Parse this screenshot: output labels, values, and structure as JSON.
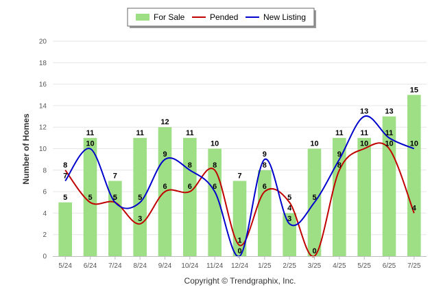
{
  "chart_data": {
    "type": "bar",
    "categories": [
      "5/24",
      "6/24",
      "7/24",
      "8/24",
      "9/24",
      "10/24",
      "11/24",
      "12/24",
      "1/25",
      "2/25",
      "3/25",
      "4/25",
      "5/25",
      "6/25",
      "7/25"
    ],
    "series": [
      {
        "name": "For Sale",
        "kind": "bar",
        "color": "#9EDF86",
        "values": [
          5,
          11,
          7,
          11,
          12,
          11,
          10,
          7,
          8,
          4,
          10,
          11,
          11,
          13,
          15
        ]
      },
      {
        "name": "Pended",
        "kind": "line",
        "color": "#C00000",
        "values": [
          8,
          5,
          5,
          3,
          6,
          6,
          8,
          1,
          6,
          5,
          0,
          8,
          10,
          10,
          4
        ]
      },
      {
        "name": "New Listing",
        "kind": "line",
        "color": "#0000CC",
        "values": [
          7,
          10,
          5,
          5,
          9,
          8,
          6,
          0,
          9,
          3,
          5,
          9,
          13,
          11,
          10
        ]
      }
    ],
    "ylabel": "Number of Homes",
    "xlabel": "",
    "ylim": [
      0,
      20
    ],
    "yticks": [
      0,
      2,
      4,
      6,
      8,
      10,
      12,
      14,
      16,
      18,
      20
    ],
    "grid": true,
    "legend_position": "top-center"
  },
  "footer": "Copyright © Trendgraphix, Inc."
}
